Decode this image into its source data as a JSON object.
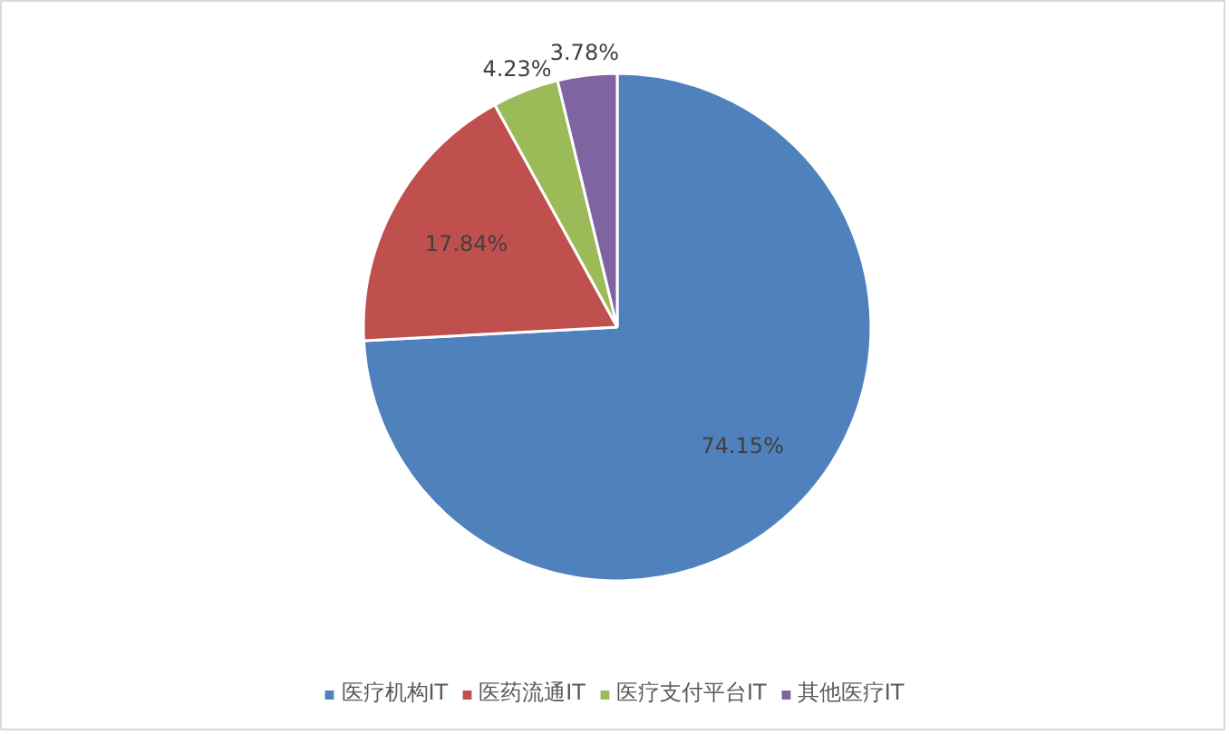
{
  "chart_data": {
    "type": "pie",
    "categories": [
      "医疗机构IT",
      "医药流通IT",
      "医疗支付平台IT",
      "其他医疗IT"
    ],
    "values": [
      74.15,
      17.84,
      4.23,
      3.78
    ],
    "colors": [
      "#4f81bd",
      "#c0504d",
      "#9bbb59",
      "#8064a2"
    ],
    "value_labels": [
      "74.15%",
      "17.84%",
      "4.23%",
      "3.78%"
    ],
    "legend": "bottom"
  }
}
